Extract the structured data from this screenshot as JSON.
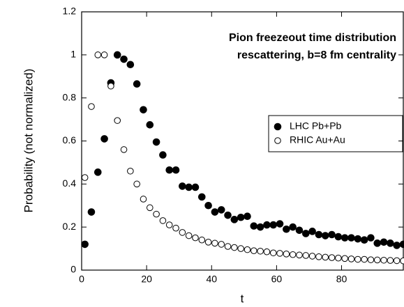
{
  "chart_data": {
    "type": "scatter",
    "title": [
      "Pion freezeout time distribution",
      "rescattering, b=8 fm centrality"
    ],
    "x_label": "t",
    "y_label": "Probability (not normalized)",
    "x": [
      1,
      3,
      5,
      7,
      9,
      11,
      13,
      15,
      17,
      19,
      21,
      23,
      25,
      27,
      29,
      31,
      33,
      35,
      37,
      39,
      41,
      43,
      45,
      47,
      49,
      51,
      53,
      55,
      57,
      59,
      61,
      63,
      65,
      67,
      69,
      71,
      73,
      75,
      77,
      79,
      81,
      83,
      85,
      87,
      89,
      91,
      93,
      95,
      97,
      99
    ],
    "series": [
      {
        "name": "LHC Pb+Pb",
        "color": "#000000",
        "marker": "filled",
        "values": [
          0.12,
          0.27,
          0.455,
          0.61,
          0.87,
          1.0,
          0.98,
          0.955,
          0.865,
          0.745,
          0.675,
          0.595,
          0.535,
          0.465,
          0.465,
          0.39,
          0.385,
          0.385,
          0.34,
          0.3,
          0.27,
          0.28,
          0.255,
          0.235,
          0.245,
          0.25,
          0.205,
          0.2,
          0.21,
          0.21,
          0.215,
          0.19,
          0.2,
          0.185,
          0.17,
          0.18,
          0.165,
          0.16,
          0.165,
          0.155,
          0.15,
          0.15,
          0.145,
          0.14,
          0.15,
          0.125,
          0.13,
          0.125,
          0.115,
          0.12
        ]
      },
      {
        "name": "RHIC Au+Au",
        "color": "#000000",
        "marker": "open",
        "values": [
          0.43,
          0.76,
          1.0,
          1.0,
          0.855,
          0.695,
          0.56,
          0.46,
          0.4,
          0.33,
          0.29,
          0.26,
          0.23,
          0.21,
          0.195,
          0.175,
          0.16,
          0.15,
          0.14,
          0.13,
          0.125,
          0.12,
          0.11,
          0.105,
          0.1,
          0.095,
          0.09,
          0.088,
          0.085,
          0.08,
          0.078,
          0.075,
          0.072,
          0.07,
          0.068,
          0.065,
          0.062,
          0.06,
          0.058,
          0.056,
          0.054,
          0.052,
          0.05,
          0.05,
          0.048,
          0.047,
          0.046,
          0.045,
          0.044,
          0.043
        ]
      }
    ],
    "xlim": [
      0,
      99
    ],
    "ylim": [
      0,
      1.2
    ],
    "xticks": [
      0,
      20,
      40,
      60,
      80
    ],
    "yticks": [
      0,
      0.2,
      0.4,
      0.6,
      0.8,
      1,
      1.2
    ]
  }
}
